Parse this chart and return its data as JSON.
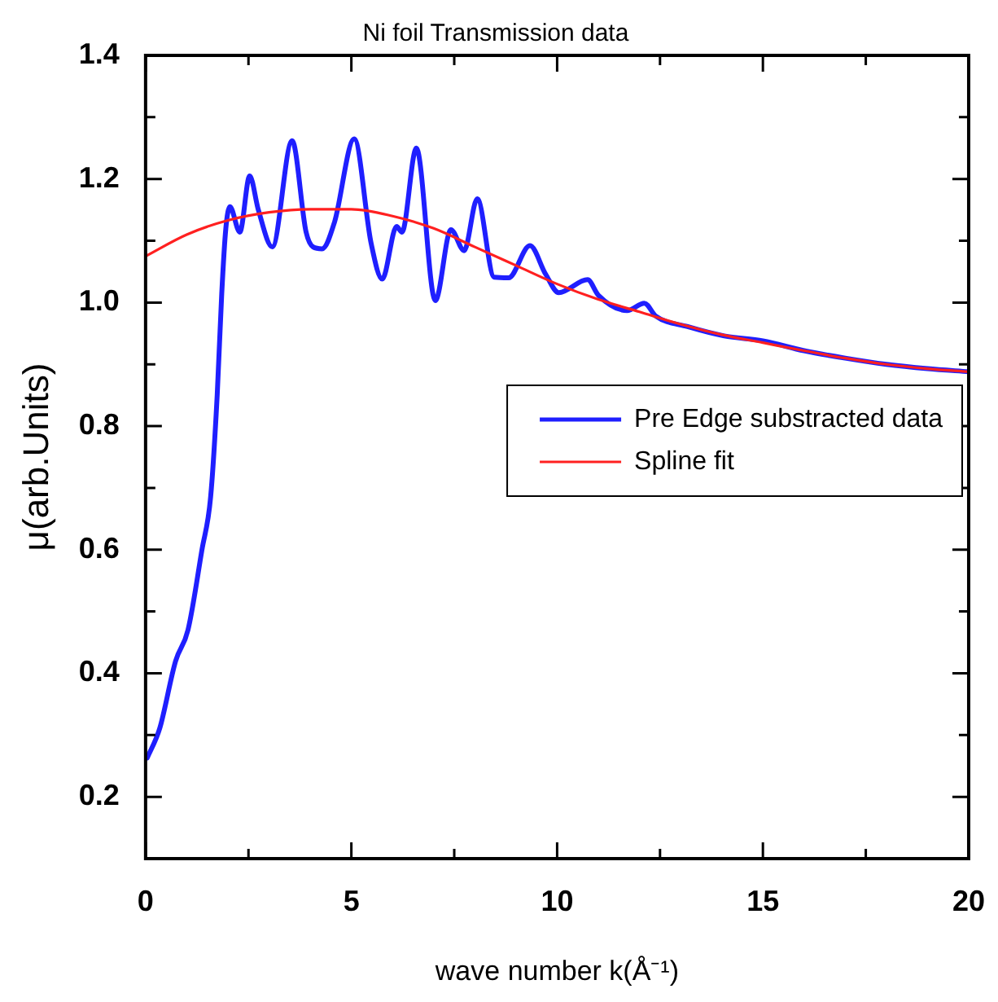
{
  "chart_data": {
    "type": "line",
    "title": "Ni foil Transmission data",
    "xlabel": "wave number k(Å⁻¹)",
    "ylabel": "μ(arb.Units)",
    "xlim": [
      0,
      20
    ],
    "ylim": [
      0.1,
      1.4
    ],
    "xticks": [
      0,
      {
        "value": 2.5,
        "label": null
      },
      5,
      {
        "value": 7.5,
        "label": null
      },
      10,
      {
        "value": 12.5,
        "label": null
      },
      15,
      {
        "value": 17.5,
        "label": null
      },
      20
    ],
    "yticks": [
      0.2,
      {
        "value": 0.3,
        "label": null
      },
      0.4,
      {
        "value": 0.5,
        "label": null
      },
      0.6,
      {
        "value": 0.7,
        "label": null
      },
      0.8,
      {
        "value": 0.9,
        "label": null
      },
      {
        "value": 1.0,
        "label": "1.0"
      },
      {
        "value": 1.1,
        "label": null
      },
      1.2,
      {
        "value": 1.3,
        "label": null
      },
      1.4
    ],
    "grid": false,
    "legend": "right",
    "marker": "none",
    "line_style": "solid",
    "series": [
      {
        "name": "Pre Edge substracted data",
        "color": "#1f1fff",
        "x": [
          0.04,
          0.34,
          0.73,
          1.03,
          1.37,
          1.58,
          1.74,
          1.85,
          1.95,
          2.05,
          2.29,
          2.53,
          2.74,
          3.08,
          3.56,
          3.9,
          4.07,
          4.29,
          4.59,
          5.07,
          5.48,
          5.75,
          6.1,
          6.23,
          6.58,
          7.04,
          7.42,
          7.74,
          8.06,
          8.47,
          8.82,
          9.34,
          9.72,
          10.04,
          10.74,
          11.0,
          11.7,
          12.12,
          12.4,
          13.17,
          14.06,
          15,
          16,
          17,
          18,
          19,
          20
        ],
        "values": [
          0.263,
          0.31,
          0.42,
          0.47,
          0.6,
          0.685,
          0.85,
          1.014,
          1.12,
          1.155,
          1.114,
          1.205,
          1.15,
          1.09,
          1.262,
          1.114,
          1.09,
          1.087,
          1.13,
          1.265,
          1.096,
          1.038,
          1.123,
          1.114,
          1.25,
          1.003,
          1.118,
          1.084,
          1.168,
          1.041,
          1.04,
          1.092,
          1.046,
          1.016,
          1.037,
          1.012,
          0.987,
          0.999,
          0.978,
          0.961,
          0.946,
          0.938,
          0.922,
          0.91,
          0.9,
          0.893,
          0.888
        ]
      },
      {
        "name": "Spline fit",
        "color": "#ff2020",
        "x": [
          0,
          1,
          2,
          3,
          4,
          5,
          6,
          7,
          8,
          9,
          10,
          11,
          12,
          13,
          14,
          15,
          16,
          17,
          18,
          19,
          20
        ],
        "values": [
          1.075,
          1.11,
          1.133,
          1.146,
          1.151,
          1.151,
          1.14,
          1.12,
          1.09,
          1.06,
          1.03,
          1.005,
          0.985,
          0.965,
          0.948,
          0.935,
          0.922,
          0.91,
          0.9,
          0.893,
          0.888
        ]
      }
    ]
  }
}
